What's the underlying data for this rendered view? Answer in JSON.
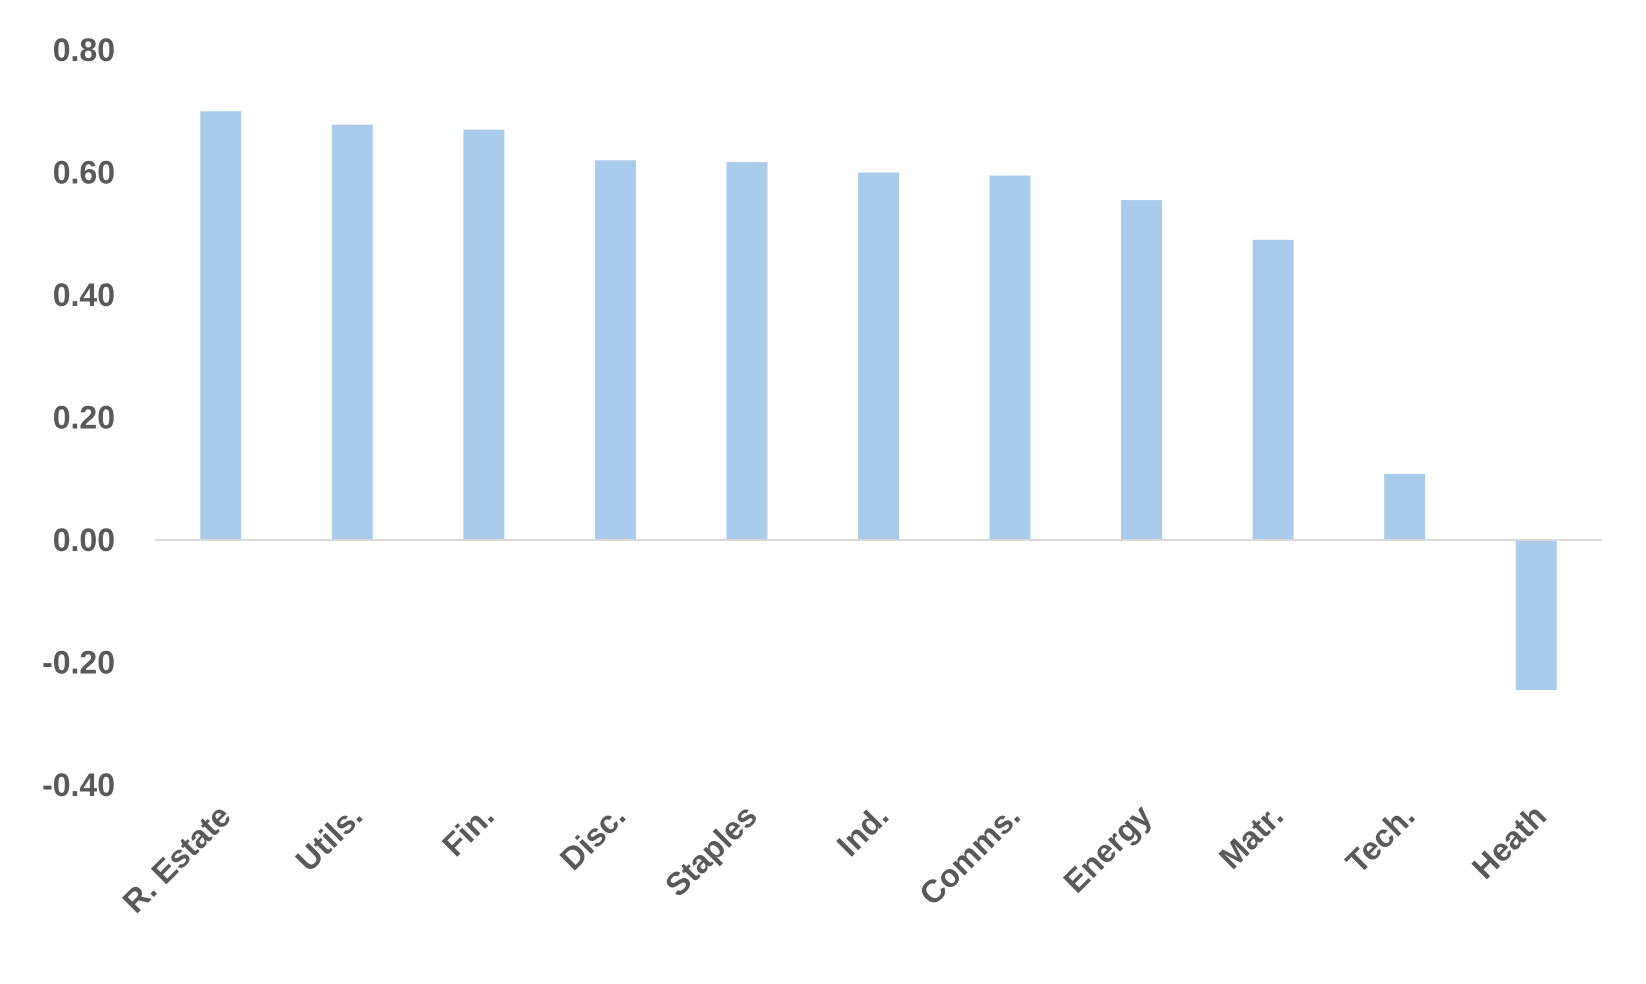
{
  "chart_data": {
    "type": "bar",
    "title": "",
    "xlabel": "",
    "ylabel": "",
    "categories": [
      "R. Estate",
      "Utils.",
      "Fin.",
      "Disc.",
      "Staples",
      "Ind.",
      "Comms.",
      "Energy",
      "Matr.",
      "Tech.",
      "Heath"
    ],
    "values": [
      0.7,
      0.678,
      0.67,
      0.62,
      0.617,
      0.6,
      0.595,
      0.555,
      0.49,
      0.108,
      -0.245
    ],
    "ylim": [
      -0.4,
      0.8
    ],
    "yticks": [
      "0.80",
      "0.60",
      "0.40",
      "0.20",
      "0.00",
      "-0.20",
      "-0.40"
    ],
    "ytick_values": [
      0.8,
      0.6,
      0.4,
      0.2,
      0.0,
      -0.2,
      -0.4
    ],
    "grid": false,
    "legend": "none",
    "bar_color": "#a9cbec",
    "axis_color": "#d9d9d9",
    "text_color": "#595959"
  }
}
